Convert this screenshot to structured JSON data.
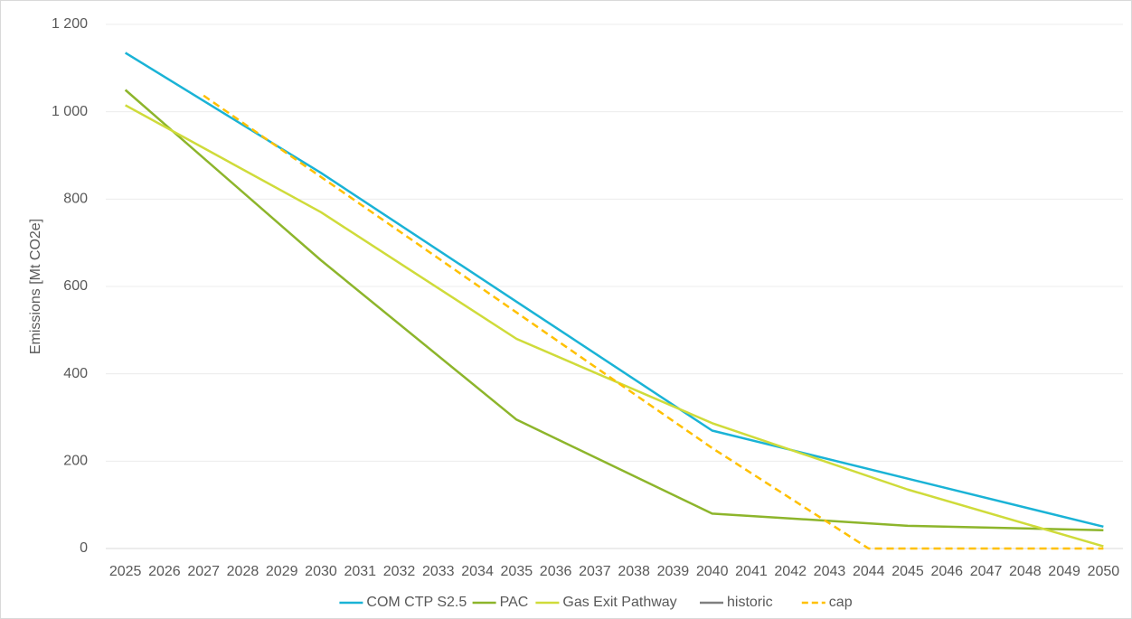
{
  "chart_data": {
    "type": "line",
    "y_label": "Emissions [Mt CO2e]",
    "xlim": [
      2024.5,
      2050.5
    ],
    "xticks": [
      2025,
      2026,
      2027,
      2028,
      2029,
      2030,
      2031,
      2032,
      2033,
      2034,
      2035,
      2036,
      2037,
      2038,
      2039,
      2040,
      2041,
      2042,
      2043,
      2044,
      2045,
      2046,
      2047,
      2048,
      2049,
      2050
    ],
    "ylim": [
      0,
      1200
    ],
    "yticks": [
      0,
      200,
      400,
      600,
      800,
      {
        "value": 1000,
        "label": "1 000"
      },
      {
        "value": 1200,
        "label": "1 200"
      }
    ],
    "grid": true,
    "legend": "bottom",
    "series": [
      {
        "name": "COM CTP S2.5",
        "color": "#1ab3d6",
        "x": [
          2025,
          2030,
          2035,
          2040,
          2045,
          2050
        ],
        "values": [
          1135,
          860,
          565,
          270,
          160,
          50
        ]
      },
      {
        "name": "PAC",
        "color": "#8db52b",
        "x": [
          2025,
          2030,
          2035,
          2040,
          2045,
          2050
        ],
        "values": [
          1050,
          660,
          295,
          80,
          52,
          42
        ]
      },
      {
        "name": "Gas Exit Pathway",
        "color": "#cfdb3a",
        "x": [
          2025,
          2030,
          2035,
          2040,
          2045,
          2050
        ],
        "values": [
          1015,
          770,
          480,
          287,
          135,
          5
        ]
      },
      {
        "name": "historic",
        "color": "#808080",
        "x": [],
        "values": []
      },
      {
        "name": "cap",
        "color": "#ffc000",
        "dashed": true,
        "x": [
          2027,
          2040,
          2044,
          2050
        ],
        "values": [
          1037,
          230,
          0,
          0
        ]
      }
    ]
  }
}
